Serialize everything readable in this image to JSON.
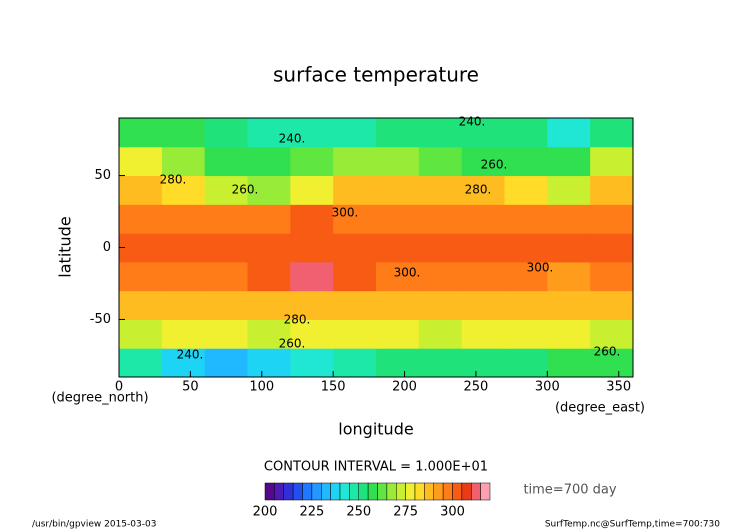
{
  "chart_data": {
    "type": "heatmap",
    "title": "surface temperature",
    "y_label": "latitude",
    "x_label": "longitude",
    "y_units": "(degree_north)",
    "x_units": "(degree_east)",
    "xlim": [
      0,
      360
    ],
    "ylim": [
      -90,
      90
    ],
    "xticks": [
      0,
      50,
      100,
      150,
      200,
      250,
      300,
      350
    ],
    "yticks": [
      -50,
      0,
      50
    ],
    "x": [
      15,
      45,
      75,
      105,
      135,
      165,
      195,
      225,
      255,
      285,
      315,
      345
    ],
    "y": [
      -80,
      -60,
      -40,
      -20,
      0,
      20,
      40,
      60,
      80
    ],
    "z": [
      [
        245,
        235,
        230,
        235,
        240,
        245,
        250,
        250,
        250,
        250,
        255,
        255
      ],
      [
        274,
        276,
        275,
        273,
        275,
        276,
        275,
        274,
        275,
        276,
        275,
        274
      ],
      [
        285,
        285,
        285,
        285,
        288,
        285,
        285,
        285,
        285,
        285,
        285,
        285
      ],
      [
        298,
        297,
        298,
        300,
        310,
        300,
        299,
        298,
        296,
        298,
        294,
        296
      ],
      [
        300,
        300,
        302,
        302,
        303,
        302,
        301,
        300,
        300,
        302,
        301,
        300
      ],
      [
        295,
        295,
        295,
        298,
        300,
        298,
        298,
        298,
        297,
        296,
        295,
        295
      ],
      [
        285,
        280,
        270,
        265,
        275,
        285,
        288,
        288,
        285,
        280,
        270,
        285
      ],
      [
        275,
        265,
        255,
        255,
        260,
        265,
        265,
        260,
        255,
        255,
        255,
        270
      ],
      [
        255,
        255,
        250,
        245,
        245,
        245,
        250,
        250,
        250,
        250,
        240,
        250
      ]
    ],
    "contour_labels": [
      "240.",
      "240.",
      "260.",
      "260.",
      "280.",
      "280.",
      "300.",
      "300.",
      "300.",
      "280.",
      "260.",
      "260.",
      "240."
    ],
    "colorbar": {
      "bins": [
        200,
        205,
        210,
        215,
        220,
        225,
        230,
        235,
        240,
        245,
        250,
        255,
        260,
        265,
        270,
        275,
        280,
        285,
        290,
        295,
        300,
        305,
        310,
        315,
        320
      ],
      "colors": [
        "#56088a",
        "#4c1ab5",
        "#3030d8",
        "#2050f0",
        "#1f78ff",
        "#2398ff",
        "#20b8ff",
        "#1ed4f4",
        "#20e6d4",
        "#1ee8a8",
        "#20e27a",
        "#30e050",
        "#60e640",
        "#98ec38",
        "#c8f030",
        "#f0f030",
        "#ffdc28",
        "#ffbc20",
        "#ff9c1c",
        "#ff7c18",
        "#f85c14",
        "#ea3c14",
        "#f06070",
        "#ffa0b0"
      ],
      "ticks": [
        200,
        225,
        250,
        275,
        300
      ]
    },
    "contour_interval": "CONTOUR INTERVAL = 1.000E+01",
    "time_label": "time=700 day",
    "footer_left": "/usr/bin/gpview  2015-03-03",
    "footer_right": "SurfTemp.nc@SurfTemp,time=700:730"
  }
}
